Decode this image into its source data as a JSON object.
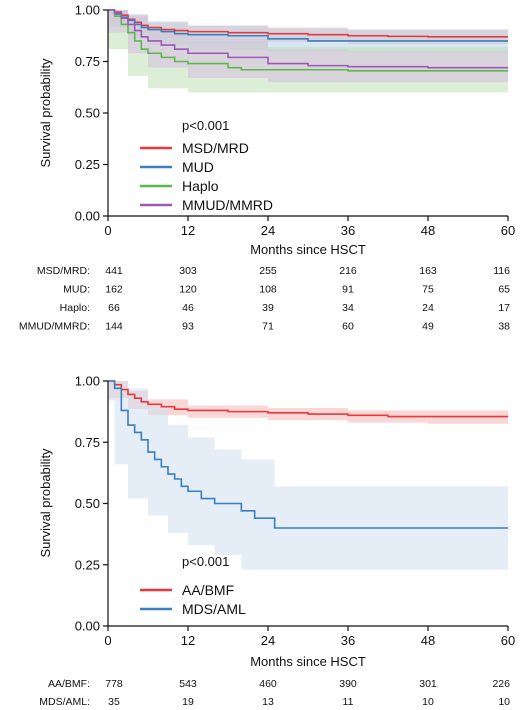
{
  "chart_data": [
    {
      "type": "line",
      "subtype": "kaplan-meier",
      "xlabel": "Months since HSCT",
      "ylabel": "Survival probability",
      "xlim": [
        0,
        60
      ],
      "ylim": [
        0,
        1
      ],
      "x_ticks": [
        "0",
        "12",
        "24",
        "36",
        "48",
        "60"
      ],
      "y_ticks": [
        "0.00",
        "0.25",
        "0.50",
        "0.75",
        "1.00"
      ],
      "annotation": "p<0.001",
      "legend_position": "center-left",
      "series": [
        {
          "name": "MSD/MRD",
          "color": "#e8383d",
          "ci_color": "#f4b6b4",
          "points": [
            [
              0,
              1
            ],
            [
              1,
              0.99
            ],
            [
              2,
              0.975
            ],
            [
              3,
              0.955
            ],
            [
              4,
              0.94
            ],
            [
              5,
              0.925
            ],
            [
              6,
              0.915
            ],
            [
              8,
              0.905
            ],
            [
              10,
              0.9
            ],
            [
              12,
              0.895
            ],
            [
              18,
              0.89
            ],
            [
              24,
              0.885
            ],
            [
              30,
              0.88
            ],
            [
              36,
              0.875
            ],
            [
              42,
              0.872
            ],
            [
              48,
              0.87
            ],
            [
              60,
              0.87
            ]
          ],
          "ci": [
            [
              0,
              1,
              1
            ],
            [
              3,
              0.975,
              0.935
            ],
            [
              6,
              0.94,
              0.89
            ],
            [
              12,
              0.925,
              0.865
            ],
            [
              24,
              0.915,
              0.855
            ],
            [
              36,
              0.905,
              0.845
            ],
            [
              48,
              0.905,
              0.835
            ],
            [
              60,
              0.905,
              0.835
            ]
          ]
        },
        {
          "name": "MUD",
          "color": "#3a7fbf",
          "ci_color": "#b7d1e8",
          "points": [
            [
              0,
              1
            ],
            [
              1,
              0.98
            ],
            [
              2,
              0.965
            ],
            [
              3,
              0.95
            ],
            [
              4,
              0.93
            ],
            [
              5,
              0.915
            ],
            [
              6,
              0.905
            ],
            [
              8,
              0.895
            ],
            [
              10,
              0.885
            ],
            [
              12,
              0.88
            ],
            [
              18,
              0.875
            ],
            [
              24,
              0.86
            ],
            [
              30,
              0.85
            ],
            [
              36,
              0.85
            ],
            [
              48,
              0.85
            ],
            [
              60,
              0.85
            ]
          ],
          "ci": [
            [
              0,
              1,
              1
            ],
            [
              3,
              0.98,
              0.915
            ],
            [
              6,
              0.945,
              0.86
            ],
            [
              12,
              0.925,
              0.83
            ],
            [
              24,
              0.91,
              0.805
            ],
            [
              36,
              0.905,
              0.795
            ],
            [
              48,
              0.905,
              0.795
            ],
            [
              60,
              0.905,
              0.795
            ]
          ]
        },
        {
          "name": "Haplo",
          "color": "#5cb84a",
          "ci_color": "#bfe0b5",
          "points": [
            [
              0,
              1
            ],
            [
              1,
              0.97
            ],
            [
              2,
              0.93
            ],
            [
              3,
              0.89
            ],
            [
              4,
              0.85
            ],
            [
              5,
              0.81
            ],
            [
              6,
              0.79
            ],
            [
              8,
              0.77
            ],
            [
              10,
              0.75
            ],
            [
              12,
              0.74
            ],
            [
              18,
              0.72
            ],
            [
              20,
              0.71
            ],
            [
              24,
              0.71
            ],
            [
              36,
              0.705
            ],
            [
              48,
              0.705
            ],
            [
              60,
              0.705
            ]
          ],
          "ci": [
            [
              0,
              1,
              1
            ],
            [
              3,
              0.96,
              0.81
            ],
            [
              6,
              0.9,
              0.68
            ],
            [
              12,
              0.85,
              0.62
            ],
            [
              24,
              0.82,
              0.6
            ],
            [
              36,
              0.82,
              0.6
            ],
            [
              48,
              0.82,
              0.6
            ],
            [
              60,
              0.82,
              0.6
            ]
          ]
        },
        {
          "name": "MMUD/MMRD",
          "color": "#9b59b6",
          "ci_color": "#d7bfe2",
          "points": [
            [
              0,
              1
            ],
            [
              1,
              0.985
            ],
            [
              2,
              0.96
            ],
            [
              3,
              0.93
            ],
            [
              4,
              0.9
            ],
            [
              5,
              0.87
            ],
            [
              6,
              0.85
            ],
            [
              8,
              0.83
            ],
            [
              10,
              0.81
            ],
            [
              12,
              0.79
            ],
            [
              18,
              0.77
            ],
            [
              24,
              0.74
            ],
            [
              30,
              0.73
            ],
            [
              36,
              0.725
            ],
            [
              48,
              0.72
            ],
            [
              60,
              0.72
            ]
          ],
          "ci": [
            [
              0,
              1,
              1
            ],
            [
              3,
              0.97,
              0.89
            ],
            [
              6,
              0.91,
              0.79
            ],
            [
              12,
              0.86,
              0.72
            ],
            [
              24,
              0.81,
              0.67
            ],
            [
              36,
              0.8,
              0.65
            ],
            [
              48,
              0.8,
              0.65
            ],
            [
              60,
              0.8,
              0.65
            ]
          ]
        }
      ],
      "risk_table": {
        "rows": [
          {
            "label": "MSD/MRD:",
            "values": [
              "441",
              "303",
              "255",
              "216",
              "163",
              "116"
            ]
          },
          {
            "label": "MUD:",
            "values": [
              "162",
              "120",
              "108",
              "91",
              "75",
              "65"
            ]
          },
          {
            "label": "Haplo:",
            "values": [
              "66",
              "46",
              "39",
              "34",
              "24",
              "17"
            ]
          },
          {
            "label": "MMUD/MMRD:",
            "values": [
              "144",
              "93",
              "71",
              "60",
              "49",
              "38"
            ]
          }
        ]
      }
    },
    {
      "type": "line",
      "subtype": "kaplan-meier",
      "xlabel": "Months since HSCT",
      "ylabel": "Survival probability",
      "xlim": [
        0,
        60
      ],
      "ylim": [
        0,
        1
      ],
      "x_ticks": [
        "0",
        "12",
        "24",
        "36",
        "48",
        "60"
      ],
      "y_ticks": [
        "0.00",
        "0.25",
        "0.50",
        "0.75",
        "1.00"
      ],
      "annotation": "p<0.001",
      "legend_position": "bottom-left",
      "series": [
        {
          "name": "AA/BMF",
          "color": "#e8383d",
          "ci_color": "#f4b6b4",
          "points": [
            [
              0,
              1
            ],
            [
              1,
              0.985
            ],
            [
              2,
              0.965
            ],
            [
              3,
              0.945
            ],
            [
              4,
              0.93
            ],
            [
              5,
              0.915
            ],
            [
              6,
              0.905
            ],
            [
              8,
              0.895
            ],
            [
              10,
              0.885
            ],
            [
              12,
              0.88
            ],
            [
              18,
              0.875
            ],
            [
              24,
              0.87
            ],
            [
              30,
              0.865
            ],
            [
              36,
              0.86
            ],
            [
              42,
              0.855
            ],
            [
              48,
              0.855
            ],
            [
              54,
              0.855
            ],
            [
              60,
              0.855
            ]
          ],
          "ci": [
            [
              0,
              1,
              1
            ],
            [
              3,
              0.96,
              0.93
            ],
            [
              6,
              0.925,
              0.885
            ],
            [
              12,
              0.9,
              0.86
            ],
            [
              24,
              0.89,
              0.85
            ],
            [
              36,
              0.88,
              0.84
            ],
            [
              48,
              0.88,
              0.83
            ],
            [
              60,
              0.88,
              0.825
            ]
          ]
        },
        {
          "name": "MDS/AML",
          "color": "#3a7fbf",
          "ci_color": "#cfe0f0",
          "points": [
            [
              0,
              1
            ],
            [
              1,
              0.97
            ],
            [
              2,
              0.88
            ],
            [
              3,
              0.82
            ],
            [
              4,
              0.79
            ],
            [
              5,
              0.76
            ],
            [
              6,
              0.71
            ],
            [
              7,
              0.68
            ],
            [
              8,
              0.65
            ],
            [
              9,
              0.62
            ],
            [
              10,
              0.6
            ],
            [
              11,
              0.57
            ],
            [
              12,
              0.55
            ],
            [
              14,
              0.52
            ],
            [
              16,
              0.5
            ],
            [
              18,
              0.5
            ],
            [
              20,
              0.47
            ],
            [
              22,
              0.44
            ],
            [
              25,
              0.4
            ],
            [
              36,
              0.4
            ],
            [
              48,
              0.4
            ],
            [
              60,
              0.4
            ]
          ],
          "ci": [
            [
              0,
              1,
              1
            ],
            [
              1,
              1,
              0.92
            ],
            [
              3,
              0.97,
              0.66
            ],
            [
              6,
              0.9,
              0.52
            ],
            [
              9,
              0.82,
              0.45
            ],
            [
              12,
              0.77,
              0.38
            ],
            [
              16,
              0.72,
              0.33
            ],
            [
              20,
              0.68,
              0.29
            ],
            [
              25,
              0.57,
              0.23
            ],
            [
              36,
              0.57,
              0.23
            ],
            [
              48,
              0.57,
              0.23
            ],
            [
              60,
              0.57,
              0.23
            ]
          ]
        }
      ],
      "risk_table": {
        "rows": [
          {
            "label": "AA/BMF:",
            "values": [
              "778",
              "543",
              "460",
              "390",
              "301",
              "226"
            ]
          },
          {
            "label": "MDS/AML:",
            "values": [
              "35",
              "19",
              "13",
              "11",
              "10",
              "10"
            ]
          }
        ]
      }
    }
  ]
}
